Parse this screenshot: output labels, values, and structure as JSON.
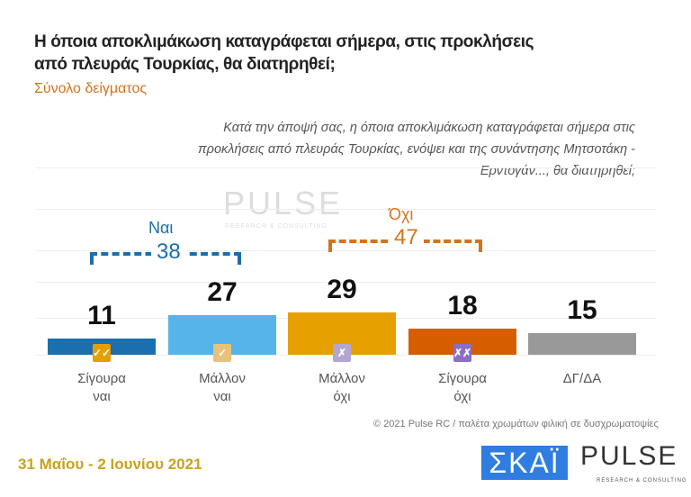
{
  "title": "Η όποια αποκλιμάκωση καταγράφεται σήμερα, στις προκλήσεις από πλευράς Τουρκίας, θα διατηρηθεί;",
  "subtitle": "Σύνολο δείγματος",
  "question": "Κατά την άποψή σας, η όποια αποκλιμάκωση καταγράφεται σήμερα στις προκλήσεις από πλευράς Τουρκίας, ενόψει και της συνάντησης Μητσοτάκη - Ερντογάν..., θα διατηρηθεί;",
  "chart_data": {
    "type": "bar",
    "categories": [
      "Σίγουρα ναι",
      "Μάλλον ναι",
      "Μάλλον όχι",
      "Σίγουρα όχι",
      "ΔΓ/ΔΑ"
    ],
    "values": [
      11,
      27,
      29,
      18,
      15
    ],
    "colors": [
      "#1a6fae",
      "#56b4e9",
      "#e6a000",
      "#d55e00",
      "#999999"
    ],
    "badges": [
      {
        "text": "✓✓",
        "color": "#e69f00",
        "icon": "double-check-icon"
      },
      {
        "text": "✓",
        "color": "#e8c27a",
        "icon": "check-icon"
      },
      {
        "text": "✗",
        "color": "#b3a6d0",
        "icon": "cross-icon"
      },
      {
        "text": "✗✗",
        "color": "#8a6fc4",
        "icon": "double-cross-icon"
      },
      null
    ],
    "groups": [
      {
        "label": "Ναι",
        "value": "38",
        "color": "#1a6fae"
      },
      {
        "label": "Όχι",
        "value": "47",
        "color": "#d4731e"
      }
    ]
  },
  "copyright": "© 2021 Pulse RC  /  παλέτα χρωμάτων φιλική σε δυσχρωματοψίες",
  "date": "31 Μαΐου - 2 Ιουνίου 2021",
  "logos": {
    "skai": "ΣΚΑΪ",
    "pulse": "PULSE",
    "pulse_sub": "RESEARCH & CONSULTING"
  }
}
